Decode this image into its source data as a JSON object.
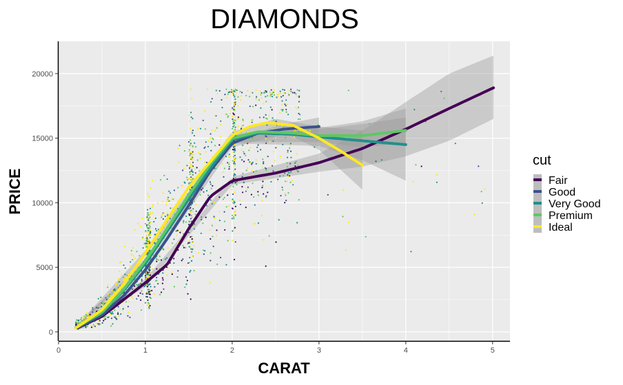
{
  "chart_data": {
    "type": "scatter",
    "title": "DIAMONDS",
    "xlabel": "CARAT",
    "ylabel": "PRICE",
    "xlim": [
      0,
      5.2
    ],
    "ylim": [
      -700,
      22500
    ],
    "x_ticks": [
      0,
      1,
      2,
      3,
      4,
      5
    ],
    "x_tick_labels": [
      "0",
      "1",
      "2",
      "3",
      "4",
      "5"
    ],
    "y_ticks": [
      0,
      5000,
      10000,
      15000,
      20000
    ],
    "y_tick_labels": [
      "0",
      "5000",
      "10000",
      "15000",
      "20000"
    ],
    "grid": true,
    "background": "#ebebeb",
    "legend": {
      "title": "cut",
      "placement": "right",
      "entries": [
        "Fair",
        "Good",
        "Very Good",
        "Premium",
        "Ideal"
      ]
    },
    "colors": {
      "Fair": "#440154",
      "Good": "#3b528b",
      "Very Good": "#21908c",
      "Premium": "#5dc863",
      "Ideal": "#fde725"
    },
    "series": [
      {
        "name": "Fair",
        "smooth": [
          [
            0.22,
            300
          ],
          [
            0.5,
            1200
          ],
          [
            0.75,
            2500
          ],
          [
            1.0,
            3800
          ],
          [
            1.25,
            5200
          ],
          [
            1.5,
            8000
          ],
          [
            1.75,
            10500
          ],
          [
            2.0,
            11700
          ],
          [
            2.5,
            12300
          ],
          [
            3.0,
            13100
          ],
          [
            3.5,
            14200
          ],
          [
            4.0,
            15700
          ],
          [
            4.5,
            17300
          ],
          [
            5.01,
            18900
          ]
        ],
        "ci_upper": [
          [
            0.22,
            500
          ],
          [
            1.0,
            4100
          ],
          [
            2.0,
            12000
          ],
          [
            3.0,
            13800
          ],
          [
            3.5,
            15600
          ],
          [
            4.0,
            17800
          ],
          [
            4.5,
            20000
          ],
          [
            5.01,
            21400
          ]
        ],
        "ci_lower": [
          [
            0.22,
            100
          ],
          [
            1.0,
            3500
          ],
          [
            2.0,
            11400
          ],
          [
            3.0,
            12400
          ],
          [
            3.5,
            12800
          ],
          [
            4.0,
            13600
          ],
          [
            4.5,
            14800
          ],
          [
            5.01,
            16500
          ]
        ]
      },
      {
        "name": "Good",
        "smooth": [
          [
            0.23,
            350
          ],
          [
            0.5,
            1300
          ],
          [
            0.75,
            2800
          ],
          [
            1.0,
            4800
          ],
          [
            1.25,
            7200
          ],
          [
            1.5,
            9800
          ],
          [
            1.75,
            12500
          ],
          [
            2.0,
            14600
          ],
          [
            2.3,
            15400
          ],
          [
            2.6,
            15700
          ],
          [
            3.0,
            15900
          ]
        ],
        "ci_upper": [
          [
            0.23,
            500
          ],
          [
            1.0,
            5000
          ],
          [
            2.0,
            14900
          ],
          [
            2.6,
            16100
          ],
          [
            3.0,
            16600
          ]
        ],
        "ci_lower": [
          [
            0.23,
            200
          ],
          [
            1.0,
            4600
          ],
          [
            2.0,
            14300
          ],
          [
            2.6,
            15300
          ],
          [
            3.0,
            15200
          ]
        ]
      },
      {
        "name": "Very Good",
        "smooth": [
          [
            0.2,
            350
          ],
          [
            0.5,
            1500
          ],
          [
            0.75,
            3200
          ],
          [
            1.0,
            5300
          ],
          [
            1.25,
            7800
          ],
          [
            1.5,
            10300
          ],
          [
            1.75,
            12700
          ],
          [
            2.0,
            14900
          ],
          [
            2.3,
            15400
          ],
          [
            2.7,
            15300
          ],
          [
            3.0,
            15100
          ],
          [
            3.5,
            14800
          ],
          [
            4.0,
            14500
          ]
        ],
        "ci_upper": [
          [
            0.2,
            500
          ],
          [
            1.0,
            5500
          ],
          [
            2.0,
            15200
          ],
          [
            3.0,
            15800
          ],
          [
            3.5,
            16300
          ],
          [
            4.0,
            17300
          ]
        ],
        "ci_lower": [
          [
            0.2,
            200
          ],
          [
            1.0,
            5100
          ],
          [
            2.0,
            14600
          ],
          [
            3.0,
            14400
          ],
          [
            3.5,
            13300
          ],
          [
            4.0,
            11700
          ]
        ]
      },
      {
        "name": "Premium",
        "smooth": [
          [
            0.2,
            350
          ],
          [
            0.5,
            1500
          ],
          [
            0.75,
            3300
          ],
          [
            1.0,
            5500
          ],
          [
            1.25,
            8000
          ],
          [
            1.5,
            10600
          ],
          [
            1.75,
            13000
          ],
          [
            2.0,
            15000
          ],
          [
            2.3,
            15500
          ],
          [
            2.7,
            15400
          ],
          [
            3.0,
            15200
          ],
          [
            3.5,
            15200
          ],
          [
            4.0,
            15600
          ]
        ],
        "ci_upper": [
          [
            0.2,
            500
          ],
          [
            1.0,
            5700
          ],
          [
            2.0,
            15300
          ],
          [
            3.0,
            15700
          ],
          [
            3.5,
            16100
          ],
          [
            4.0,
            16600
          ]
        ],
        "ci_lower": [
          [
            0.2,
            200
          ],
          [
            1.0,
            5300
          ],
          [
            2.0,
            14700
          ],
          [
            3.0,
            14700
          ],
          [
            3.5,
            14300
          ],
          [
            4.0,
            14600
          ]
        ]
      },
      {
        "name": "Ideal",
        "smooth": [
          [
            0.2,
            300
          ],
          [
            0.5,
            1700
          ],
          [
            0.75,
            3700
          ],
          [
            1.0,
            6100
          ],
          [
            1.25,
            8700
          ],
          [
            1.5,
            11200
          ],
          [
            1.75,
            13200
          ],
          [
            2.0,
            15200
          ],
          [
            2.2,
            15900
          ],
          [
            2.4,
            16200
          ],
          [
            2.7,
            16000
          ],
          [
            3.0,
            15000
          ],
          [
            3.25,
            14000
          ],
          [
            3.5,
            12900
          ]
        ],
        "ci_upper": [
          [
            0.2,
            450
          ],
          [
            1.0,
            6300
          ],
          [
            2.0,
            15500
          ],
          [
            2.5,
            16500
          ],
          [
            3.0,
            15900
          ],
          [
            3.5,
            15600
          ]
        ],
        "ci_lower": [
          [
            0.2,
            150
          ],
          [
            1.0,
            5900
          ],
          [
            2.0,
            14900
          ],
          [
            2.5,
            15800
          ],
          [
            3.0,
            14100
          ],
          [
            3.5,
            11000
          ]
        ]
      }
    ]
  }
}
